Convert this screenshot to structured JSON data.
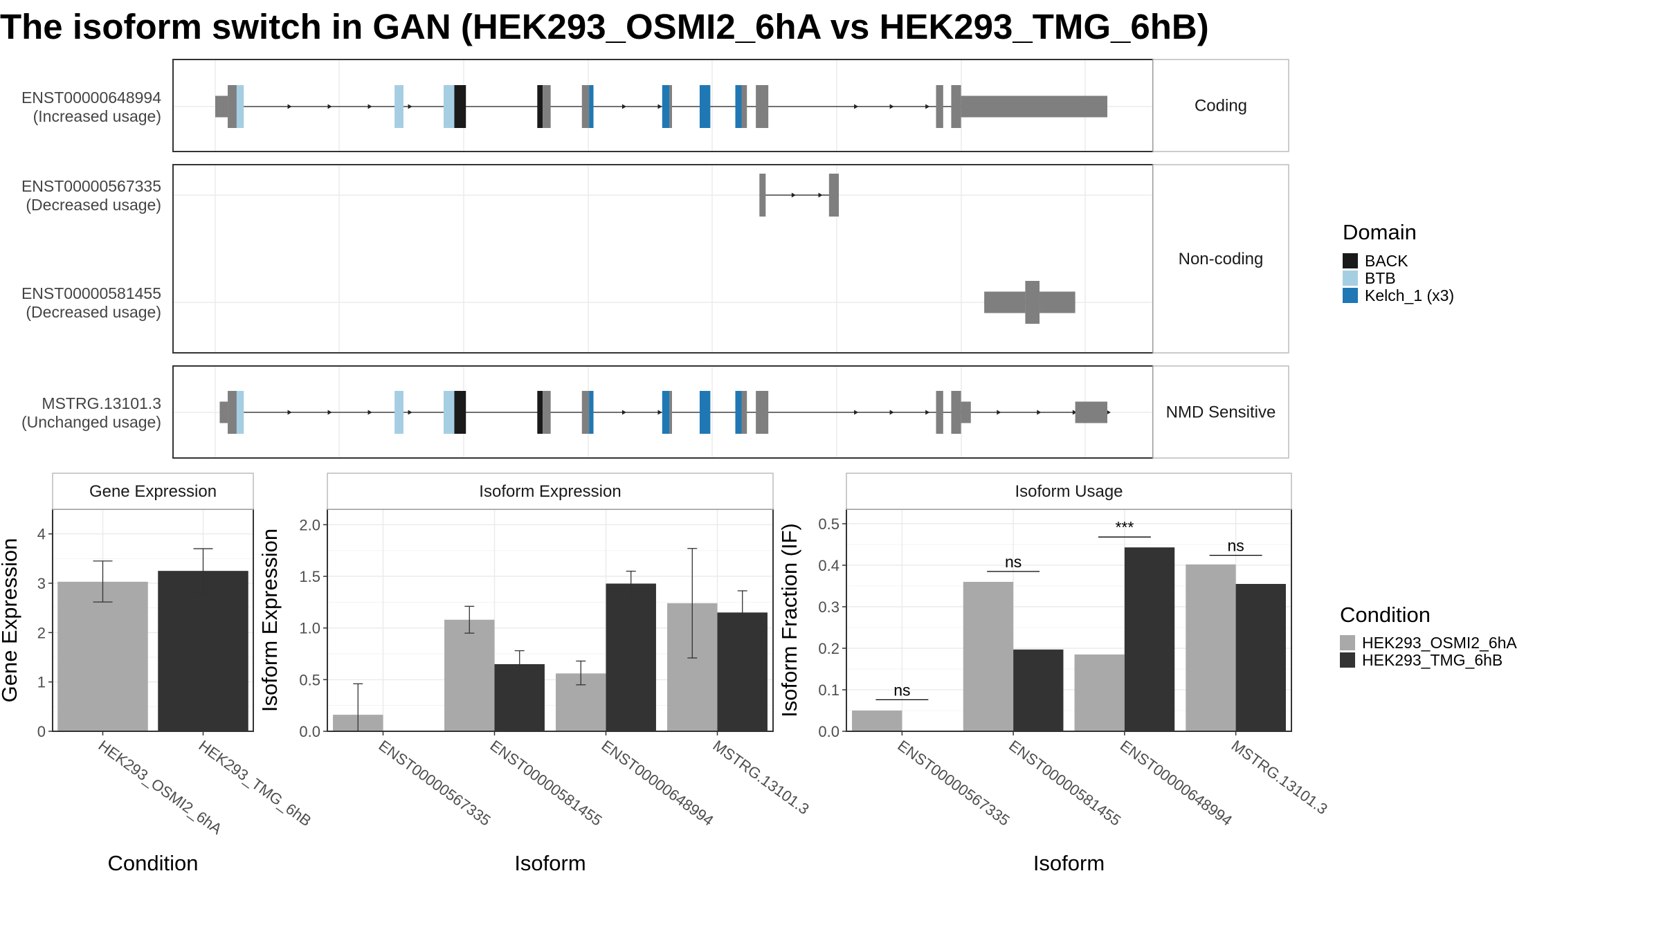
{
  "title": "The isoform switch in GAN (HEK293_OSMI2_6hA vs HEK293_TMG_6hB)",
  "colors": {
    "BACK": "#1a1a1a",
    "BTB": "#a6cee3",
    "Kelch_1 (x3)": "#1f78b4",
    "exon": "#7f7f7f",
    "cond1": "#a9a9a9",
    "cond2": "#333333"
  },
  "structure": {
    "genomic_range": [
      0,
      1000
    ],
    "panels": [
      {
        "strip": "Coding",
        "tracks": [
          {
            "id": "ENST00000648994",
            "usage": "(Increased usage)",
            "segments": [
              {
                "s": 0,
                "e": 14,
                "h": "s"
              },
              {
                "s": 14,
                "e": 24,
                "h": "t"
              },
              {
                "s": 24,
                "e": 32,
                "h": "t",
                "domain": "BTB"
              },
              {
                "s": 201,
                "e": 211,
                "h": "t",
                "domain": "BTB"
              },
              {
                "s": 256,
                "e": 268,
                "h": "t",
                "domain": "BTB"
              },
              {
                "s": 268,
                "e": 281,
                "h": "t",
                "domain": "BACK"
              },
              {
                "s": 361,
                "e": 367,
                "h": "t",
                "domain": "BACK"
              },
              {
                "s": 367,
                "e": 376,
                "h": "t"
              },
              {
                "s": 411,
                "e": 419,
                "h": "t"
              },
              {
                "s": 419,
                "e": 424,
                "h": "t",
                "domain": "Kelch_1 (x3)"
              },
              {
                "s": 501,
                "e": 509,
                "h": "t",
                "domain": "Kelch_1 (x3)"
              },
              {
                "s": 509,
                "e": 512,
                "h": "t"
              },
              {
                "s": 543,
                "e": 555,
                "h": "t",
                "domain": "Kelch_1 (x3)"
              },
              {
                "s": 583,
                "e": 590,
                "h": "t",
                "domain": "Kelch_1 (x3)"
              },
              {
                "s": 590,
                "e": 596,
                "h": "t"
              },
              {
                "s": 606,
                "e": 620,
                "h": "t"
              },
              {
                "s": 808,
                "e": 816,
                "h": "t"
              },
              {
                "s": 825,
                "e": 836,
                "h": "t"
              },
              {
                "s": 836,
                "e": 1000,
                "h": "s"
              }
            ],
            "arrows": [
              85,
              130,
              175,
              220,
              460,
              500,
              720,
              760,
              800
            ]
          }
        ]
      },
      {
        "strip": "Non-coding",
        "tracks": [
          {
            "id": "ENST00000567335",
            "usage": "(Decreased usage)",
            "segments": [
              {
                "s": 610,
                "e": 617,
                "h": "t"
              },
              {
                "s": 688,
                "e": 699,
                "h": "t"
              }
            ],
            "arrows": [
              650,
              680
            ]
          },
          {
            "id": "ENST00000581455",
            "usage": "(Decreased usage)",
            "segments": [
              {
                "s": 862,
                "e": 908,
                "h": "s"
              },
              {
                "s": 908,
                "e": 924,
                "h": "t"
              },
              {
                "s": 924,
                "e": 964,
                "h": "s"
              }
            ],
            "arrows": []
          }
        ]
      },
      {
        "strip": "NMD Sensitive",
        "tracks": [
          {
            "id": "MSTRG.13101.3",
            "usage": "(Unchanged usage)",
            "segments": [
              {
                "s": 5,
                "e": 14,
                "h": "s"
              },
              {
                "s": 14,
                "e": 24,
                "h": "t"
              },
              {
                "s": 24,
                "e": 32,
                "h": "t",
                "domain": "BTB"
              },
              {
                "s": 201,
                "e": 211,
                "h": "t",
                "domain": "BTB"
              },
              {
                "s": 256,
                "e": 268,
                "h": "t",
                "domain": "BTB"
              },
              {
                "s": 268,
                "e": 281,
                "h": "t",
                "domain": "BACK"
              },
              {
                "s": 361,
                "e": 367,
                "h": "t",
                "domain": "BACK"
              },
              {
                "s": 367,
                "e": 376,
                "h": "t"
              },
              {
                "s": 411,
                "e": 419,
                "h": "t"
              },
              {
                "s": 419,
                "e": 424,
                "h": "t",
                "domain": "Kelch_1 (x3)"
              },
              {
                "s": 501,
                "e": 509,
                "h": "t",
                "domain": "Kelch_1 (x3)"
              },
              {
                "s": 509,
                "e": 512,
                "h": "t"
              },
              {
                "s": 543,
                "e": 555,
                "h": "t",
                "domain": "Kelch_1 (x3)"
              },
              {
                "s": 583,
                "e": 590,
                "h": "t",
                "domain": "Kelch_1 (x3)"
              },
              {
                "s": 590,
                "e": 596,
                "h": "t"
              },
              {
                "s": 606,
                "e": 620,
                "h": "t"
              },
              {
                "s": 808,
                "e": 816,
                "h": "t"
              },
              {
                "s": 825,
                "e": 836,
                "h": "t"
              },
              {
                "s": 836,
                "e": 847,
                "h": "s"
              },
              {
                "s": 964,
                "e": 1000,
                "h": "s"
              }
            ],
            "arrows": [
              85,
              130,
              175,
              220,
              460,
              500,
              720,
              760,
              800,
              880,
              925,
              965,
              1003
            ]
          }
        ]
      }
    ]
  },
  "domain_legend": {
    "title": "Domain",
    "items": [
      "BACK",
      "BTB",
      "Kelch_1 (x3)"
    ]
  },
  "condition_legend": {
    "title": "Condition",
    "items": [
      "HEK293_OSMI2_6hA",
      "HEK293_TMG_6hB"
    ]
  },
  "chart_data": [
    {
      "type": "bar",
      "title": "Gene Expression",
      "xlabel": "Condition",
      "ylabel": "Gene Expression",
      "ylim": [
        0,
        4.5
      ],
      "yticks": [
        0,
        1,
        2,
        3,
        4
      ],
      "categories": [
        "HEK293_OSMI2_6hA",
        "HEK293_TMG_6hB"
      ],
      "values": [
        3.03,
        3.25
      ],
      "errors": [
        [
          2.62,
          3.45
        ],
        [
          2.8,
          3.7
        ]
      ]
    },
    {
      "type": "bar",
      "title": "Isoform Expression",
      "xlabel": "Isoform",
      "ylabel": "Isoform Expression",
      "ylim": [
        0,
        2.15
      ],
      "yticks": [
        0.0,
        0.5,
        1.0,
        1.5,
        2.0
      ],
      "categories": [
        "ENST00000567335",
        "ENST00000581455",
        "ENST00000648994",
        "MSTRG.13101.3"
      ],
      "series": [
        {
          "name": "HEK293_OSMI2_6hA",
          "values": [
            0.16,
            1.08,
            0.56,
            1.24
          ],
          "errors": [
            [
              0.0,
              0.46
            ],
            [
              0.95,
              1.21
            ],
            [
              0.45,
              0.68
            ],
            [
              0.71,
              1.77
            ]
          ]
        },
        {
          "name": "HEK293_TMG_6hB",
          "values": [
            0.0,
            0.65,
            1.43,
            1.15
          ],
          "errors": [
            [
              0.0,
              0.0
            ],
            [
              0.52,
              0.78
            ],
            [
              1.31,
              1.55
            ],
            [
              0.94,
              1.36
            ]
          ]
        }
      ]
    },
    {
      "type": "bar",
      "title": "Isoform Usage",
      "xlabel": "Isoform",
      "ylabel": "Isoform Fraction (IF)",
      "ylim": [
        0,
        0.535
      ],
      "yticks": [
        0.0,
        0.1,
        0.2,
        0.3,
        0.4,
        0.5
      ],
      "categories": [
        "ENST00000567335",
        "ENST00000581455",
        "ENST00000648994",
        "MSTRG.13101.3"
      ],
      "series": [
        {
          "name": "HEK293_OSMI2_6hA",
          "values": [
            0.05,
            0.36,
            0.185,
            0.402
          ]
        },
        {
          "name": "HEK293_TMG_6hB",
          "values": [
            0.0,
            0.197,
            0.443,
            0.355
          ]
        }
      ],
      "significance": [
        "ns",
        "ns",
        "***",
        "ns"
      ],
      "significance_y": [
        0.076,
        0.385,
        0.468,
        0.424
      ]
    }
  ]
}
